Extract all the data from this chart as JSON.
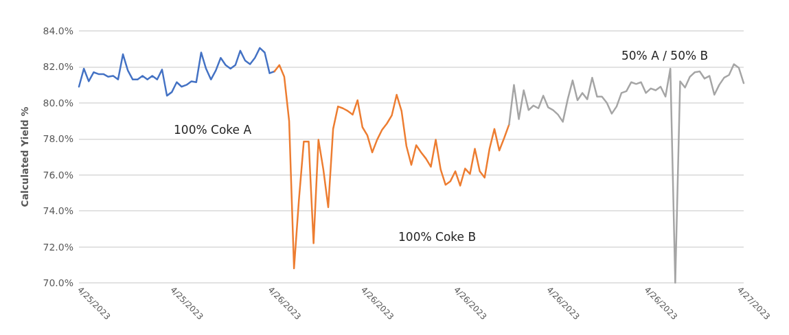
{
  "chart_data": {
    "type": "line",
    "ylabel": "Calculated Yield %",
    "categories": [
      "4/25/2023",
      null,
      null,
      null,
      null,
      null,
      null,
      null,
      null,
      null,
      null,
      null,
      null,
      null,
      null,
      null,
      null,
      null,
      null,
      "4/25/2023",
      null,
      null,
      null,
      null,
      null,
      null,
      null,
      null,
      null,
      null,
      null,
      null,
      null,
      null,
      null,
      null,
      null,
      null,
      null,
      "4/26/2023",
      null,
      null,
      null,
      null,
      null,
      null,
      null,
      null,
      null,
      null,
      null,
      null,
      null,
      null,
      null,
      null,
      null,
      null,
      "4/26/2023",
      null,
      null,
      null,
      null,
      null,
      null,
      null,
      null,
      null,
      null,
      null,
      null,
      null,
      null,
      null,
      null,
      null,
      null,
      "4/26/2023",
      null,
      null,
      null,
      null,
      null,
      null,
      null,
      null,
      null,
      null,
      null,
      null,
      null,
      null,
      null,
      null,
      null,
      null,
      "4/26/2023",
      null,
      null,
      null,
      null,
      null,
      null,
      null,
      null,
      null,
      null,
      null,
      null,
      null,
      null,
      null,
      null,
      null,
      null,
      null,
      "4/26/2023",
      null,
      null,
      null,
      null,
      null,
      null,
      null,
      null,
      null,
      null,
      null,
      null,
      null,
      null,
      null,
      null,
      null,
      null,
      "4/27/2023",
      null
    ],
    "series": [
      {
        "color": "#4472c4",
        "values": [
          80.9,
          81.9,
          81.2,
          81.7,
          81.6,
          81.6,
          81.45,
          81.5,
          81.3,
          82.7,
          81.8,
          81.3,
          81.3,
          81.5,
          81.3,
          81.5,
          81.3,
          81.85,
          80.4,
          80.6,
          81.15,
          80.9,
          81.0,
          81.2,
          81.15,
          82.8,
          81.9,
          81.3,
          81.8,
          82.5,
          82.1,
          81.9,
          82.1,
          82.9,
          82.35,
          82.15,
          82.5,
          83.05,
          82.8,
          81.65,
          81.75,
          null,
          null,
          null,
          null,
          null,
          null,
          null,
          null,
          null,
          null,
          null,
          null,
          null,
          null,
          null,
          null,
          null,
          null,
          null,
          null,
          null,
          null,
          null,
          null,
          null,
          null,
          null,
          null,
          null,
          null,
          null,
          null,
          null,
          null,
          null,
          null,
          null,
          null,
          null,
          null,
          null,
          null,
          null,
          null,
          null,
          null,
          null,
          null,
          null,
          null,
          null,
          null,
          null,
          null,
          null,
          null,
          null,
          null,
          null,
          null,
          null,
          null,
          null,
          null,
          null,
          null,
          null,
          null,
          null,
          null,
          null,
          null,
          null,
          null,
          null,
          null,
          null,
          null,
          null,
          null,
          null,
          null,
          null,
          null,
          null,
          null,
          null,
          null,
          null,
          null,
          null,
          null,
          null,
          null,
          null,
          null
        ]
      },
      {
        "color": "#ed7d31",
        "values": [
          null,
          null,
          null,
          null,
          null,
          null,
          null,
          null,
          null,
          null,
          null,
          null,
          null,
          null,
          null,
          null,
          null,
          null,
          null,
          null,
          null,
          null,
          null,
          null,
          null,
          null,
          null,
          null,
          null,
          null,
          null,
          null,
          null,
          null,
          null,
          null,
          null,
          null,
          null,
          null,
          81.75,
          82.1,
          81.45,
          79.0,
          70.8,
          74.6,
          77.85,
          77.85,
          72.2,
          77.95,
          76.3,
          74.2,
          78.55,
          79.8,
          79.7,
          79.55,
          79.35,
          80.15,
          78.65,
          78.2,
          77.25,
          77.95,
          78.5,
          78.85,
          79.3,
          80.45,
          79.55,
          77.6,
          76.55,
          77.65,
          77.25,
          76.9,
          76.45,
          77.95,
          76.3,
          75.45,
          75.65,
          76.2,
          75.4,
          76.35,
          76.05,
          77.45,
          76.2,
          75.85,
          77.45,
          78.55,
          77.35,
          78.05,
          78.8,
          null,
          null,
          null,
          null,
          null,
          null,
          null,
          null,
          null,
          null,
          null,
          null,
          null,
          null,
          null,
          null,
          null,
          null,
          null,
          null,
          null,
          null,
          null,
          null,
          null,
          null,
          null,
          null,
          null,
          null,
          null,
          null,
          null,
          null,
          null,
          null,
          null,
          null,
          null,
          null,
          null,
          null,
          null,
          null,
          null,
          null,
          null,
          null
        ]
      },
      {
        "color": "#a5a5a5",
        "values": [
          null,
          null,
          null,
          null,
          null,
          null,
          null,
          null,
          null,
          null,
          null,
          null,
          null,
          null,
          null,
          null,
          null,
          null,
          null,
          null,
          null,
          null,
          null,
          null,
          null,
          null,
          null,
          null,
          null,
          null,
          null,
          null,
          null,
          null,
          null,
          null,
          null,
          null,
          null,
          null,
          null,
          null,
          null,
          null,
          null,
          null,
          null,
          null,
          null,
          null,
          null,
          null,
          null,
          null,
          null,
          null,
          null,
          null,
          null,
          null,
          null,
          null,
          null,
          null,
          null,
          null,
          null,
          null,
          null,
          null,
          null,
          null,
          null,
          null,
          null,
          null,
          null,
          null,
          null,
          null,
          null,
          null,
          null,
          null,
          null,
          null,
          null,
          null,
          78.8,
          81.0,
          79.1,
          80.7,
          79.6,
          79.85,
          79.7,
          80.4,
          79.75,
          79.6,
          79.35,
          78.95,
          80.2,
          81.25,
          80.15,
          80.55,
          80.2,
          81.4,
          80.35,
          80.35,
          80.0,
          79.4,
          79.8,
          80.55,
          80.65,
          81.15,
          81.05,
          81.15,
          80.55,
          80.8,
          80.7,
          80.9,
          80.35,
          81.9,
          70.0,
          81.2,
          80.85,
          81.45,
          81.7,
          81.75,
          81.35,
          81.5,
          80.45,
          81.0,
          81.4,
          81.55,
          82.15,
          81.95,
          81.1
        ]
      }
    ],
    "ylim": [
      70,
      84
    ],
    "yticks": [
      {
        "value": 70,
        "label": "70.0%"
      },
      {
        "value": 72,
        "label": "72.0%"
      },
      {
        "value": 74,
        "label": "74.0%"
      },
      {
        "value": 76,
        "label": "76.0%"
      },
      {
        "value": 78,
        "label": "78.0%"
      },
      {
        "value": 80,
        "label": "80.0%"
      },
      {
        "value": 82,
        "label": "82.0%"
      },
      {
        "value": 84,
        "label": "84.0%"
      }
    ],
    "grid": "y",
    "marker": "none",
    "line_style": "solid",
    "annotations": [
      "100% Coke A",
      "100% Coke B",
      "50% A / 50% B"
    ]
  }
}
